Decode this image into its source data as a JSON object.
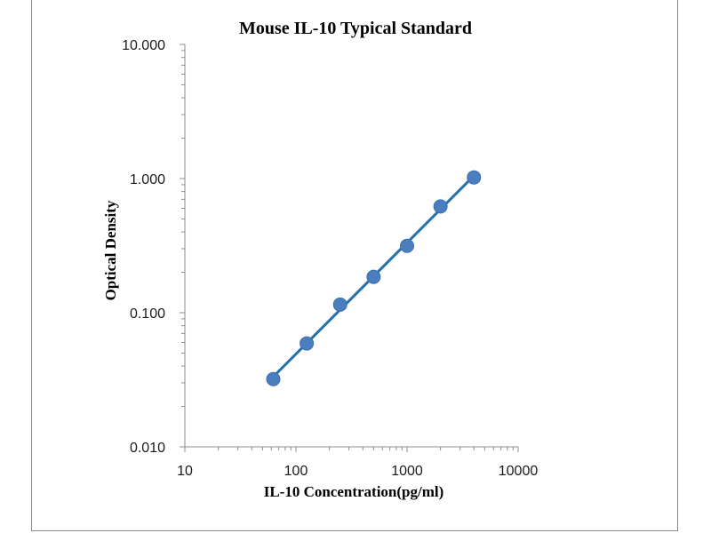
{
  "chart_data": {
    "type": "scatter",
    "title": "Mouse IL-10 Typical Standard",
    "xlabel": "IL-10 Concentration(pg/ml)",
    "ylabel": "Optical Density",
    "xscale": "log",
    "yscale": "log",
    "xlim": [
      10,
      10000
    ],
    "ylim": [
      0.01,
      10
    ],
    "x_ticks": [
      "10",
      "100",
      "1000",
      "10000"
    ],
    "y_ticks": [
      "0.010",
      "0.100",
      "1.000",
      "10.000"
    ],
    "grid": false,
    "legend": "none",
    "series": [
      {
        "x": [
          62.5,
          125,
          250,
          500,
          1000,
          2000,
          4000
        ],
        "y": [
          0.032,
          0.059,
          0.115,
          0.185,
          0.315,
          0.62,
          1.02
        ],
        "marker_color": "#4a7ebf",
        "trendline": true,
        "trendline_color": "#2471a8"
      }
    ]
  }
}
